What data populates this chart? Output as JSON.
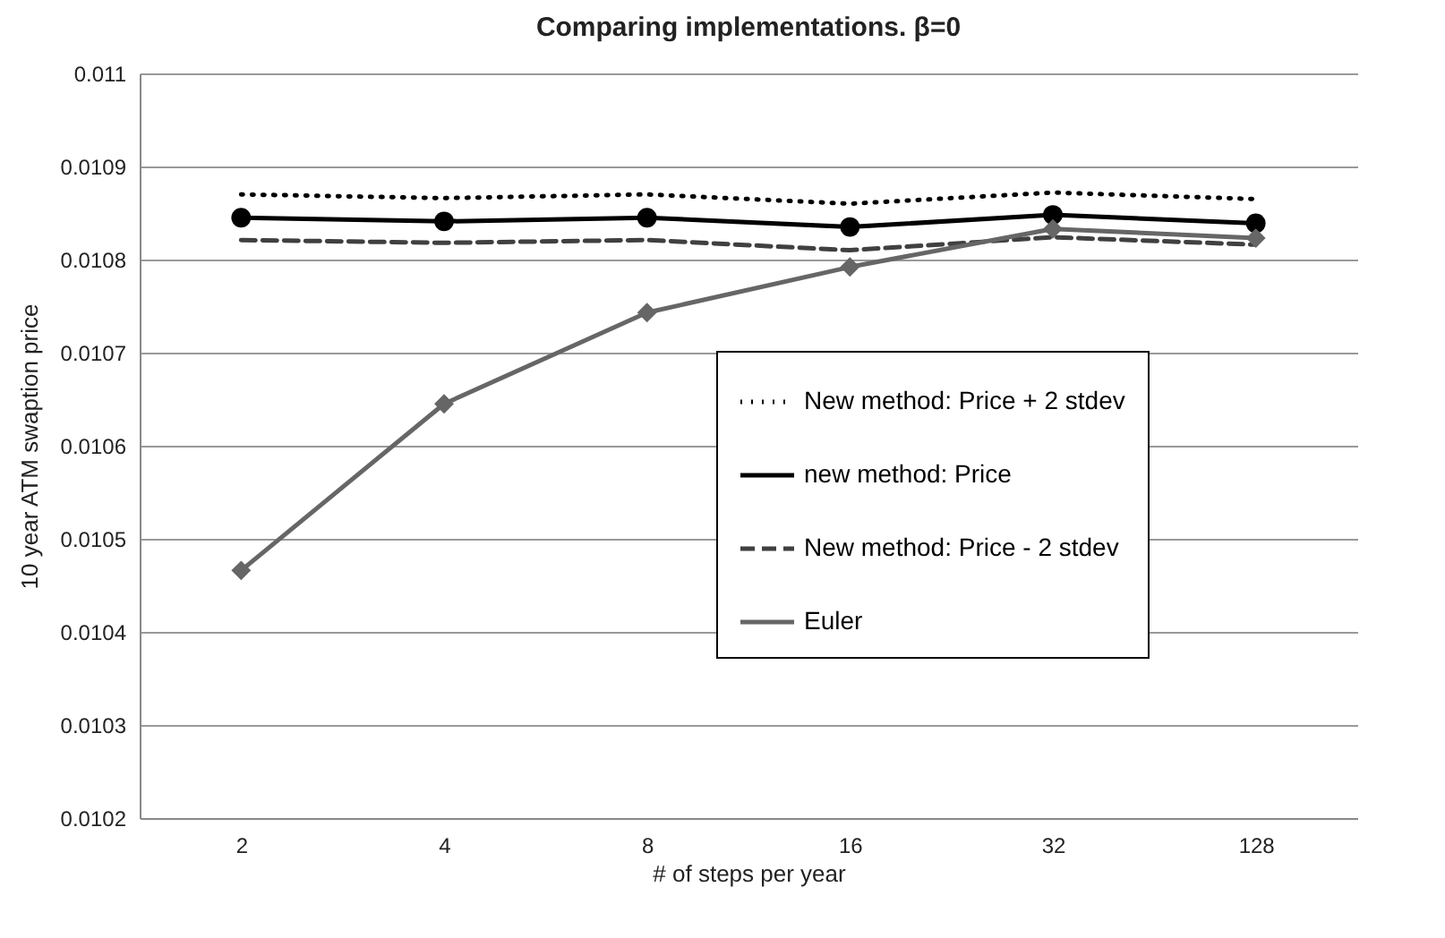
{
  "chart_data": {
    "type": "line",
    "title": "Comparing implementations. β=0",
    "xlabel": "# of steps per year",
    "ylabel": "10 year ATM swaption price",
    "categories": [
      "2",
      "4",
      "8",
      "16",
      "32",
      "128"
    ],
    "series": [
      {
        "name": "New method: Price + 2 stdev",
        "color": "#000000",
        "line_style": "dotted",
        "marker": "none",
        "values": [
          0.01087,
          0.010866,
          0.01087,
          0.01086,
          0.010872,
          0.010865
        ]
      },
      {
        "name": "new method: Price",
        "color": "#000000",
        "line_style": "solid",
        "marker": "circle",
        "values": [
          0.010845,
          0.010841,
          0.010845,
          0.010835,
          0.010848,
          0.010839
        ]
      },
      {
        "name": "New method: Price - 2 stdev",
        "color": "#404040",
        "line_style": "dashed",
        "marker": "none",
        "values": [
          0.010821,
          0.010818,
          0.010821,
          0.01081,
          0.010824,
          0.010816
        ]
      },
      {
        "name": "Euler",
        "color": "#666666",
        "line_style": "solid",
        "marker": "diamond",
        "values": [
          0.010466,
          0.010645,
          0.010743,
          0.010792,
          0.010833,
          0.010823
        ]
      }
    ],
    "ylim": [
      0.0102,
      0.011
    ],
    "yticks": [
      0.0102,
      0.0103,
      0.0104,
      0.0105,
      0.0106,
      0.0107,
      0.0108,
      0.0109,
      0.011
    ],
    "grid": "y",
    "legend": "right"
  }
}
